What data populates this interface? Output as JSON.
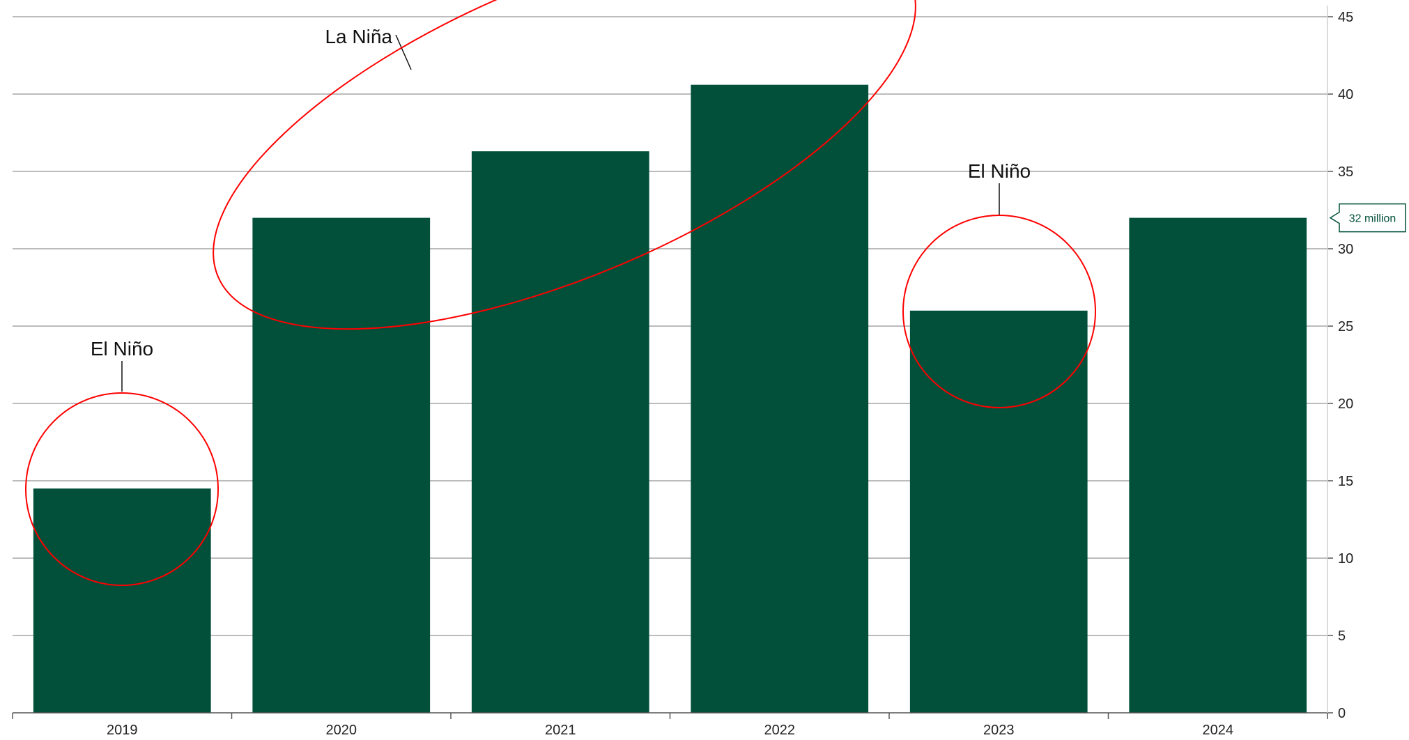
{
  "chart_data": {
    "type": "bar",
    "categories": [
      "2019",
      "2020",
      "2021",
      "2022",
      "2023",
      "2024"
    ],
    "values": [
      14.5,
      32,
      36.3,
      40.6,
      26,
      32
    ],
    "ylim": [
      0,
      45
    ],
    "yticks": [
      0,
      5,
      10,
      15,
      20,
      25,
      30,
      35,
      40,
      45
    ],
    "y_axis_position": "right",
    "grid": true,
    "bar_color": "#02503a",
    "annotation_color": "#ff0000",
    "annotations": [
      {
        "text": "El Niño",
        "target": "2019"
      },
      {
        "text": "La Niña",
        "target": "2020-2022"
      },
      {
        "text": "El Niño",
        "target": "2023"
      }
    ],
    "callout": {
      "text": "32 million",
      "value": 32
    }
  }
}
